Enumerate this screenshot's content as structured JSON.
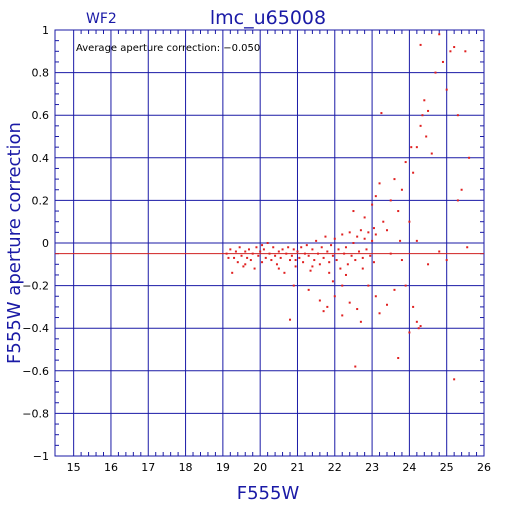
{
  "chart_data": {
    "type": "scatter",
    "panel_label": "WF2",
    "title": "lmc_u65008",
    "xlabel": "F555W",
    "ylabel": "F555W aperture correction",
    "annotation": "Average aperture correction: −0.050",
    "xlim": [
      14.5,
      26
    ],
    "ylim": [
      -1,
      1
    ],
    "x_ticks": [
      15,
      16,
      17,
      18,
      19,
      20,
      21,
      22,
      23,
      24,
      25,
      26
    ],
    "y_ticks": [
      -1,
      -0.8,
      -0.6,
      -0.4,
      -0.2,
      0,
      0.2,
      0.4,
      0.6,
      0.8,
      1
    ],
    "x_tick_labels": [
      "15",
      "16",
      "17",
      "18",
      "19",
      "20",
      "21",
      "22",
      "23",
      "24",
      "25",
      "26"
    ],
    "y_tick_labels": [
      "−1",
      "−0.8",
      "−0.6",
      "−0.4",
      "−0.2",
      "0",
      "0.2",
      "0.4",
      "0.6",
      "0.8",
      "1"
    ],
    "grid": true,
    "reference_line_y": -0.05,
    "colors": {
      "axes": "#1a1aa6",
      "grid": "#1a1aa6",
      "points": "#e02020",
      "reference_line": "#d02020"
    },
    "points": [
      [
        19.1,
        -0.05
      ],
      [
        19.2,
        -0.03
      ],
      [
        19.3,
        -0.07
      ],
      [
        19.35,
        -0.04
      ],
      [
        19.4,
        -0.09
      ],
      [
        19.45,
        -0.02
      ],
      [
        19.5,
        -0.06
      ],
      [
        19.55,
        -0.11
      ],
      [
        19.6,
        -0.04
      ],
      [
        19.65,
        -0.07
      ],
      [
        19.7,
        -0.03
      ],
      [
        19.75,
        -0.08
      ],
      [
        19.8,
        -0.05
      ],
      [
        19.85,
        -0.12
      ],
      [
        19.9,
        -0.02
      ],
      [
        19.95,
        -0.06
      ],
      [
        20.0,
        -0.04
      ],
      [
        20.05,
        -0.09
      ],
      [
        20.1,
        -0.03
      ],
      [
        20.15,
        -0.07
      ],
      [
        20.2,
        0.0
      ],
      [
        20.25,
        -0.05
      ],
      [
        20.3,
        -0.08
      ],
      [
        20.35,
        -0.02
      ],
      [
        20.4,
        -0.06
      ],
      [
        20.45,
        -0.1
      ],
      [
        20.5,
        -0.04
      ],
      [
        20.55,
        -0.07
      ],
      [
        20.6,
        -0.03
      ],
      [
        20.65,
        -0.14
      ],
      [
        20.7,
        -0.05
      ],
      [
        20.75,
        -0.02
      ],
      [
        20.8,
        -0.08
      ],
      [
        20.85,
        -0.06
      ],
      [
        20.9,
        -0.03
      ],
      [
        20.95,
        -0.11
      ],
      [
        21.0,
        -0.04
      ],
      [
        21.05,
        -0.07
      ],
      [
        21.1,
        -0.02
      ],
      [
        21.15,
        -0.09
      ],
      [
        21.2,
        -0.05
      ],
      [
        21.25,
        -0.01
      ],
      [
        21.3,
        -0.06
      ],
      [
        21.35,
        -0.13
      ],
      [
        21.4,
        -0.03
      ],
      [
        21.45,
        -0.08
      ],
      [
        21.5,
        0.01
      ],
      [
        21.55,
        -0.05
      ],
      [
        21.6,
        -0.1
      ],
      [
        21.65,
        -0.02
      ],
      [
        21.7,
        -0.07
      ],
      [
        21.75,
        0.03
      ],
      [
        21.8,
        -0.04
      ],
      [
        21.85,
        -0.09
      ],
      [
        21.9,
        -0.01
      ],
      [
        21.95,
        -0.06
      ],
      [
        22.0,
        0.02
      ],
      [
        22.05,
        -0.08
      ],
      [
        22.1,
        -0.03
      ],
      [
        22.15,
        -0.12
      ],
      [
        22.2,
        0.04
      ],
      [
        22.25,
        -0.05
      ],
      [
        22.3,
        -0.02
      ],
      [
        22.35,
        -0.1
      ],
      [
        22.4,
        0.05
      ],
      [
        22.45,
        -0.06
      ],
      [
        22.5,
        0.0
      ],
      [
        22.55,
        -0.08
      ],
      [
        22.6,
        0.03
      ],
      [
        22.65,
        -0.04
      ],
      [
        22.7,
        0.06
      ],
      [
        22.75,
        -0.07
      ],
      [
        22.8,
        0.02
      ],
      [
        22.85,
        -0.03
      ],
      [
        22.9,
        0.05
      ],
      [
        22.95,
        -0.06
      ],
      [
        23.0,
        0.01
      ],
      [
        23.05,
        -0.09
      ],
      [
        23.1,
        0.04
      ],
      [
        19.25,
        -0.14
      ],
      [
        19.15,
        -0.07
      ],
      [
        19.6,
        -0.1
      ],
      [
        20.05,
        -0.01
      ],
      [
        20.5,
        -0.12
      ],
      [
        20.95,
        -0.08
      ],
      [
        21.4,
        -0.11
      ],
      [
        21.85,
        -0.14
      ],
      [
        22.3,
        -0.15
      ],
      [
        22.75,
        -0.12
      ],
      [
        23.05,
        0.07
      ],
      [
        20.9,
        -0.2
      ],
      [
        21.3,
        -0.22
      ],
      [
        21.6,
        -0.27
      ],
      [
        21.7,
        -0.32
      ],
      [
        21.8,
        -0.3
      ],
      [
        22.0,
        -0.25
      ],
      [
        22.2,
        -0.34
      ],
      [
        22.4,
        -0.28
      ],
      [
        22.6,
        -0.31
      ],
      [
        22.7,
        -0.37
      ],
      [
        22.9,
        -0.2
      ],
      [
        23.1,
        -0.25
      ],
      [
        23.2,
        -0.33
      ],
      [
        23.4,
        -0.29
      ],
      [
        23.6,
        -0.22
      ],
      [
        20.8,
        -0.36
      ],
      [
        22.55,
        -0.58
      ],
      [
        23.7,
        -0.54
      ],
      [
        24.0,
        -0.42
      ],
      [
        24.2,
        -0.37
      ],
      [
        24.25,
        -0.4
      ],
      [
        24.3,
        -0.39
      ],
      [
        24.1,
        -0.3
      ],
      [
        23.9,
        -0.2
      ],
      [
        23.5,
        0.2
      ],
      [
        23.6,
        0.3
      ],
      [
        23.7,
        0.15
      ],
      [
        23.8,
        0.25
      ],
      [
        23.9,
        0.38
      ],
      [
        24.0,
        0.1
      ],
      [
        24.1,
        0.33
      ],
      [
        24.2,
        0.45
      ],
      [
        24.3,
        0.55
      ],
      [
        24.35,
        0.6
      ],
      [
        24.4,
        0.67
      ],
      [
        24.45,
        0.5
      ],
      [
        24.5,
        0.62
      ],
      [
        24.6,
        0.42
      ],
      [
        24.7,
        0.8
      ],
      [
        24.8,
        0.98
      ],
      [
        24.9,
        0.85
      ],
      [
        25.0,
        0.72
      ],
      [
        25.1,
        0.9
      ],
      [
        25.2,
        0.92
      ],
      [
        25.3,
        0.6
      ],
      [
        25.4,
        0.25
      ],
      [
        25.5,
        0.9
      ],
      [
        25.6,
        0.4
      ],
      [
        25.55,
        -0.02
      ],
      [
        25.3,
        0.2
      ],
      [
        24.3,
        0.93
      ],
      [
        23.2,
        0.28
      ],
      [
        23.1,
        0.22
      ],
      [
        23.0,
        0.18
      ],
      [
        22.8,
        0.12
      ],
      [
        22.5,
        0.15
      ],
      [
        23.3,
        0.1
      ],
      [
        23.5,
        -0.05
      ],
      [
        23.8,
        -0.08
      ],
      [
        24.5,
        -0.1
      ],
      [
        24.8,
        -0.04
      ],
      [
        25.0,
        -0.08
      ],
      [
        23.75,
        0.01
      ],
      [
        24.2,
        0.01
      ],
      [
        23.4,
        0.06
      ],
      [
        22.2,
        -0.2
      ],
      [
        21.95,
        -0.18
      ],
      [
        23.25,
        0.61
      ],
      [
        25.2,
        -0.64
      ],
      [
        24.05,
        0.45
      ]
    ]
  }
}
